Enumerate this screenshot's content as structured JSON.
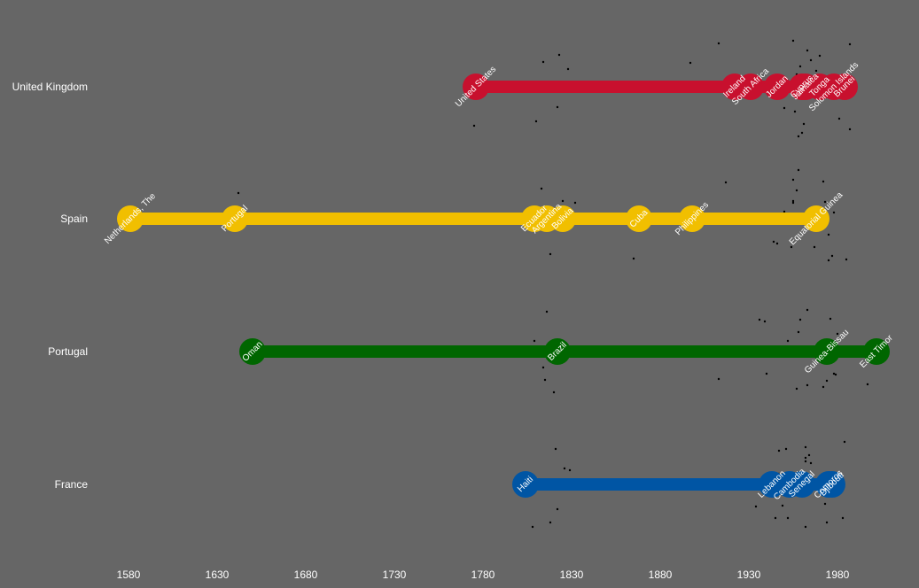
{
  "chart_data": {
    "type": "timeline",
    "xlim": [
      1560,
      2005
    ],
    "x_ticks": [
      1580,
      1630,
      1680,
      1730,
      1780,
      1830,
      1880,
      1930,
      1980
    ],
    "background": "#666666",
    "series": [
      {
        "name": "United Kingdom",
        "color": "#c8102e",
        "events": [
          {
            "year": 1776,
            "label": "United States"
          },
          {
            "year": 1922,
            "label": "Ireland"
          },
          {
            "year": 1931,
            "label": "South Africa"
          },
          {
            "year": 1946,
            "label": "Jordan"
          },
          {
            "year": 1960,
            "label": "Cyprus"
          },
          {
            "year": 1962,
            "label": "Jamaica"
          },
          {
            "year": 1970,
            "label": "Tonga"
          },
          {
            "year": 1978,
            "label": "Solomon Islands"
          },
          {
            "year": 1984,
            "label": "Brunei"
          }
        ]
      },
      {
        "name": "Spain",
        "color": "#f1bf00",
        "events": [
          {
            "year": 1581,
            "label": "Netherlands, The"
          },
          {
            "year": 1640,
            "label": "Portugal"
          },
          {
            "year": 1809,
            "label": "Ecuador"
          },
          {
            "year": 1816,
            "label": "Argentina"
          },
          {
            "year": 1825,
            "label": "Bolivia"
          },
          {
            "year": 1868,
            "label": "Cuba"
          },
          {
            "year": 1898,
            "label": "Philippines"
          },
          {
            "year": 1968,
            "label": "Equatorial Guinea"
          }
        ]
      },
      {
        "name": "Portugal",
        "color": "#006600",
        "events": [
          {
            "year": 1650,
            "label": "Oman"
          },
          {
            "year": 1822,
            "label": "Brazil"
          },
          {
            "year": 1974,
            "label": "Guinea-Bissau"
          },
          {
            "year": 2002,
            "label": "East Timor"
          }
        ]
      },
      {
        "name": "France",
        "color": "#0055a4",
        "events": [
          {
            "year": 1804,
            "label": "Haiti"
          },
          {
            "year": 1943,
            "label": "Lebanon"
          },
          {
            "year": 1953,
            "label": "Cambodia"
          },
          {
            "year": 1960,
            "label": "Senegal"
          },
          {
            "year": 1975,
            "label": "Comoros"
          },
          {
            "year": 1977,
            "label": "Djibouti"
          }
        ]
      }
    ],
    "scatter_points": [
      [
        1913,
        0.49
      ],
      [
        1917,
        0.41
      ],
      [
        1936,
        0.36
      ],
      [
        1951,
        0.4
      ],
      [
        1963,
        0.41
      ],
      [
        1972,
        0.42
      ],
      [
        1976,
        0.37
      ],
      [
        1984,
        0.48
      ],
      [
        1987,
        0.48
      ],
      [
        1955,
        0.2
      ],
      [
        1958,
        0.22
      ],
      [
        1965,
        0.24
      ],
      [
        1968,
        0.18
      ],
      [
        1973,
        0.19
      ],
      [
        1980,
        0.2
      ],
      [
        1962,
        0.26
      ],
      [
        1959,
        0.23
      ],
      [
        1950,
        0.08
      ],
      [
        1958,
        0.05
      ],
      [
        1966,
        0.06
      ],
      [
        1971,
        0.09
      ],
      [
        1978,
        0.07
      ],
      [
        1985,
        0.04
      ],
      [
        1949,
        -0.24
      ],
      [
        1956,
        -0.28
      ],
      [
        1967,
        -0.32
      ],
      [
        1972,
        -0.4
      ],
      [
        1983,
        -0.38
      ],
      [
        1987,
        -0.48
      ],
      [
        1985,
        -0.46
      ],
      [
        1913,
        -0.31
      ],
      [
        1952,
        -0.38
      ],
      [
        1961,
        -0.42
      ],
      [
        1946,
        -0.28
      ],
      [
        1979,
        -0.26
      ],
      [
        1962,
        0.3
      ],
      [
        1970,
        0.35
      ],
      [
        1955,
        0.44
      ],
      [
        1939,
        0.34
      ],
      [
        1947,
        0.38
      ],
      [
        1775,
        -0.44
      ],
      [
        1642,
        0.29
      ],
      [
        1816,
        0.45
      ],
      [
        1821,
        0.4
      ],
      [
        1823,
        0.36
      ],
      [
        1813,
        0.34
      ],
      [
        1809,
        0.12
      ],
      [
        1826,
        0.18
      ],
      [
        1814,
        0.28
      ],
      [
        1832,
        0.18
      ],
      [
        1815,
        -0.32
      ],
      [
        1822,
        -0.28
      ],
      [
        1810,
        -0.39
      ],
      [
        1818,
        -0.4
      ],
      [
        1820,
        -0.46
      ],
      [
        1808,
        -0.48
      ],
      [
        1897,
        0.27
      ],
      [
        1865,
        -0.45
      ],
      [
        1974,
        -0.33
      ],
      [
        1818,
        -0.43
      ],
      [
        1822,
        -0.23
      ],
      [
        1825,
        0.2
      ],
      [
        1814,
        -0.18
      ],
      [
        1829,
        0.16
      ],
      [
        1828,
        0.2
      ],
      [
        1975,
        -0.18
      ],
      [
        1978,
        -0.25
      ],
      [
        1973,
        -0.22
      ],
      [
        1981,
        -0.36
      ],
      [
        1977,
        -0.42
      ],
      [
        1997,
        -0.37
      ],
      [
        1974,
        -0.43
      ],
      [
        1955,
        0.52
      ],
      [
        1958,
        0.55
      ],
      [
        1963,
        0.47
      ],
      [
        1962,
        0.42
      ],
      [
        1965,
        0.3
      ],
      [
        1957,
        0.32
      ],
      [
        1959,
        0.36
      ],
      [
        1947,
        0.12
      ],
      [
        1957,
        0.14
      ],
      [
        1955,
        0.18
      ],
      [
        1952,
        0.12
      ],
      [
        1964,
        0.33
      ],
      [
        1950,
        -0.24
      ],
      [
        1954,
        -0.32
      ],
      [
        1957,
        -0.42
      ],
      [
        1962,
        -0.48
      ],
      [
        1960,
        -0.52
      ],
      [
        1944,
        -0.26
      ],
      [
        1940,
        -0.25
      ],
      [
        1945,
        -0.38
      ],
      [
        1958,
        -0.56
      ],
      [
        1975,
        -0.47
      ],
      [
        1963,
        -0.38
      ],
      [
        1934,
        -0.25
      ]
    ]
  }
}
